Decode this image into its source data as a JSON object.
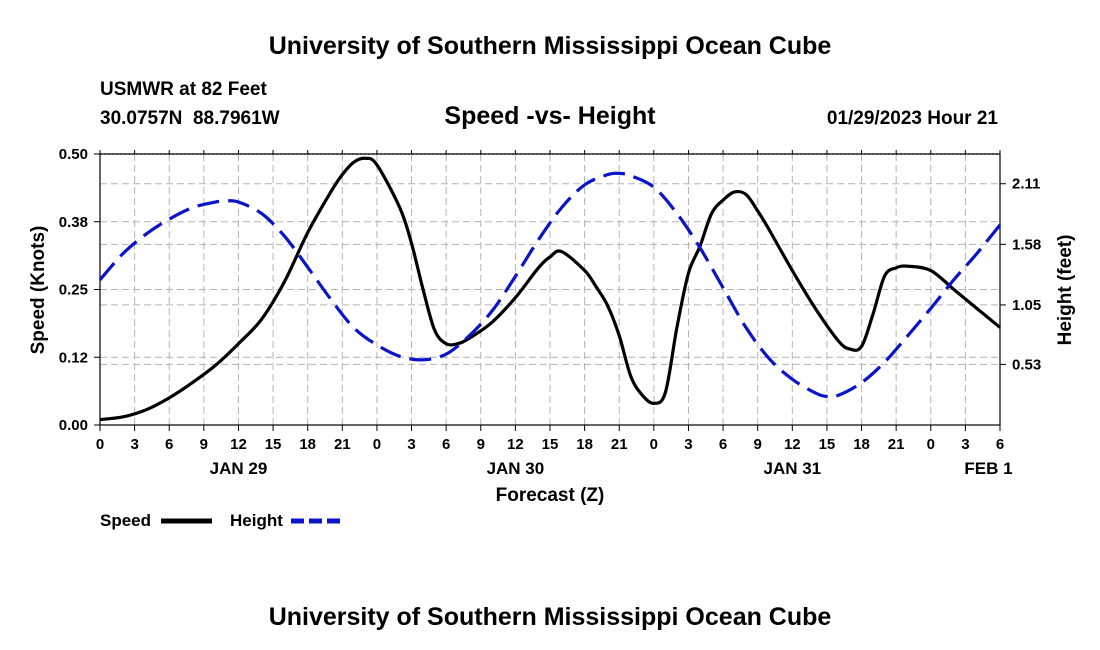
{
  "header": {
    "title": "University of Southern Mississippi Ocean Cube",
    "station": "USMWR at 82 Feet",
    "coords": "30.0757N  88.7961W",
    "chart_title": "Speed -vs- Height",
    "timestamp": "01/29/2023 Hour 21"
  },
  "footer": {
    "title": "University of Southern Mississippi Ocean Cube"
  },
  "colors": {
    "speed": "#000000",
    "height": "#0a14c8",
    "grid": "#b4b4b4"
  },
  "chart_data": {
    "type": "line",
    "title": "Speed -vs- Height",
    "xlabel": "Forecast (Z)",
    "ylabel": "Speed (Knots)",
    "y2label": "Height (feet)",
    "x_unit": "forecast hour from JAN 29 00Z",
    "xlim": [
      0,
      78
    ],
    "ylim": [
      0,
      0.5
    ],
    "y2lim": [
      0,
      2.37
    ],
    "x_ticks": [
      {
        "x": 0,
        "label": "0"
      },
      {
        "x": 3,
        "label": "3"
      },
      {
        "x": 6,
        "label": "6"
      },
      {
        "x": 9,
        "label": "9"
      },
      {
        "x": 12,
        "label": "12"
      },
      {
        "x": 15,
        "label": "15"
      },
      {
        "x": 18,
        "label": "18"
      },
      {
        "x": 21,
        "label": "21"
      },
      {
        "x": 24,
        "label": "0"
      },
      {
        "x": 27,
        "label": "3"
      },
      {
        "x": 30,
        "label": "6"
      },
      {
        "x": 33,
        "label": "9"
      },
      {
        "x": 36,
        "label": "12"
      },
      {
        "x": 39,
        "label": "15"
      },
      {
        "x": 42,
        "label": "18"
      },
      {
        "x": 45,
        "label": "21"
      },
      {
        "x": 48,
        "label": "0"
      },
      {
        "x": 51,
        "label": "3"
      },
      {
        "x": 54,
        "label": "6"
      },
      {
        "x": 57,
        "label": "9"
      },
      {
        "x": 60,
        "label": "12"
      },
      {
        "x": 63,
        "label": "15"
      },
      {
        "x": 66,
        "label": "18"
      },
      {
        "x": 69,
        "label": "21"
      },
      {
        "x": 72,
        "label": "0"
      },
      {
        "x": 75,
        "label": "3"
      },
      {
        "x": 78,
        "label": "6"
      }
    ],
    "date_labels": [
      {
        "x": 12,
        "label": "JAN 29"
      },
      {
        "x": 36,
        "label": "JAN 30"
      },
      {
        "x": 60,
        "label": "JAN 31"
      },
      {
        "x": 77,
        "label": "FEB 1"
      }
    ],
    "y_ticks": [
      {
        "value": 0.0,
        "label": "0.00"
      },
      {
        "value": 0.125,
        "label": "0.12"
      },
      {
        "value": 0.25,
        "label": "0.25"
      },
      {
        "value": 0.375,
        "label": "0.38"
      },
      {
        "value": 0.5,
        "label": "0.50"
      }
    ],
    "y2_ticks": [
      {
        "value": 0.53,
        "label": "0.53"
      },
      {
        "value": 1.05,
        "label": "1.05"
      },
      {
        "value": 1.58,
        "label": "1.58"
      },
      {
        "value": 2.11,
        "label": "2.11"
      }
    ],
    "legend": [
      {
        "name": "Speed",
        "style": "solid"
      },
      {
        "name": "Height",
        "style": "dashed"
      }
    ],
    "series": [
      {
        "name": "Speed",
        "axis": "left",
        "style": "solid",
        "x": [
          0,
          2,
          4,
          6,
          8,
          10,
          12,
          14,
          16,
          18,
          20,
          21,
          22,
          23,
          24,
          26,
          27,
          28,
          29,
          30,
          31,
          32,
          34,
          36,
          38,
          39,
          40,
          42,
          43,
          44,
          45,
          46,
          47,
          48,
          49,
          50,
          51,
          52,
          53,
          54,
          55,
          56,
          57,
          58,
          60,
          62,
          64,
          65,
          66,
          67,
          68,
          69,
          70,
          72,
          74,
          76,
          78
        ],
        "values": [
          0.01,
          0.015,
          0.028,
          0.05,
          0.078,
          0.11,
          0.15,
          0.195,
          0.265,
          0.355,
          0.43,
          0.462,
          0.485,
          0.492,
          0.48,
          0.4,
          0.335,
          0.25,
          0.175,
          0.15,
          0.15,
          0.16,
          0.19,
          0.235,
          0.29,
          0.31,
          0.32,
          0.285,
          0.255,
          0.22,
          0.165,
          0.09,
          0.055,
          0.04,
          0.06,
          0.18,
          0.28,
          0.33,
          0.39,
          0.415,
          0.43,
          0.425,
          0.395,
          0.36,
          0.285,
          0.215,
          0.155,
          0.14,
          0.145,
          0.205,
          0.275,
          0.29,
          0.293,
          0.285,
          0.25,
          0.215,
          0.18
        ]
      },
      {
        "name": "Height",
        "axis": "right",
        "style": "dashed",
        "x": [
          0,
          2,
          4,
          6,
          8,
          10,
          11,
          12,
          14,
          16,
          18,
          20,
          22,
          24,
          26,
          28,
          30,
          32,
          34,
          36,
          38,
          40,
          42,
          44,
          45,
          46,
          48,
          50,
          52,
          54,
          56,
          58,
          60,
          62,
          63,
          64,
          66,
          68,
          70,
          72,
          74,
          76,
          78
        ],
        "values": [
          1.27,
          1.5,
          1.67,
          1.8,
          1.9,
          1.95,
          1.96,
          1.95,
          1.85,
          1.65,
          1.38,
          1.1,
          0.85,
          0.7,
          0.6,
          0.57,
          0.62,
          0.78,
          1.0,
          1.3,
          1.62,
          1.9,
          2.1,
          2.19,
          2.2,
          2.18,
          2.08,
          1.85,
          1.55,
          1.2,
          0.85,
          0.58,
          0.4,
          0.28,
          0.25,
          0.26,
          0.37,
          0.55,
          0.78,
          1.02,
          1.27,
          1.5,
          1.75
        ]
      }
    ]
  }
}
